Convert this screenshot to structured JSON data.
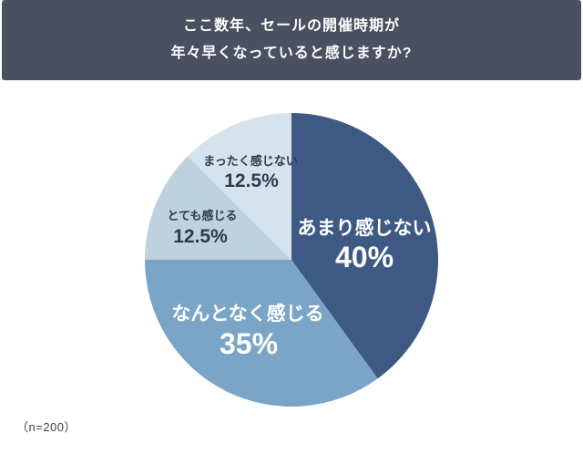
{
  "header": {
    "title_line1": "ここ数年、セールの開催時期が",
    "title_line2": "年々早くなっていると感じますか?",
    "bg_color": "#4a505f",
    "text_color": "#ffffff"
  },
  "footer": {
    "sample_size": "（n=200）"
  },
  "chart_data": {
    "type": "pie",
    "title": "ここ数年、セールの開催時期が年々早くなっていると感じますか?",
    "sample_note": "（n=200）",
    "start_angle": "12-oclock",
    "direction": "clockwise",
    "legend_position": "none",
    "total": 100,
    "slices": [
      {
        "label": "あまり感じない",
        "value": 40,
        "display": "40%",
        "color": "#3e5a84",
        "text_color": "#ffffff"
      },
      {
        "label": "なんとなく感じる",
        "value": 35,
        "display": "35%",
        "color": "#7aa5c7",
        "text_color": "#ffffff"
      },
      {
        "label": "とても感じる",
        "value": 12.5,
        "display": "12.5%",
        "color": "#bdd1de",
        "text_color": "#2e3a4e"
      },
      {
        "label": "まったく感じない",
        "value": 12.5,
        "display": "12.5%",
        "color": "#d6e3ed",
        "text_color": "#2e3a4e"
      }
    ]
  }
}
